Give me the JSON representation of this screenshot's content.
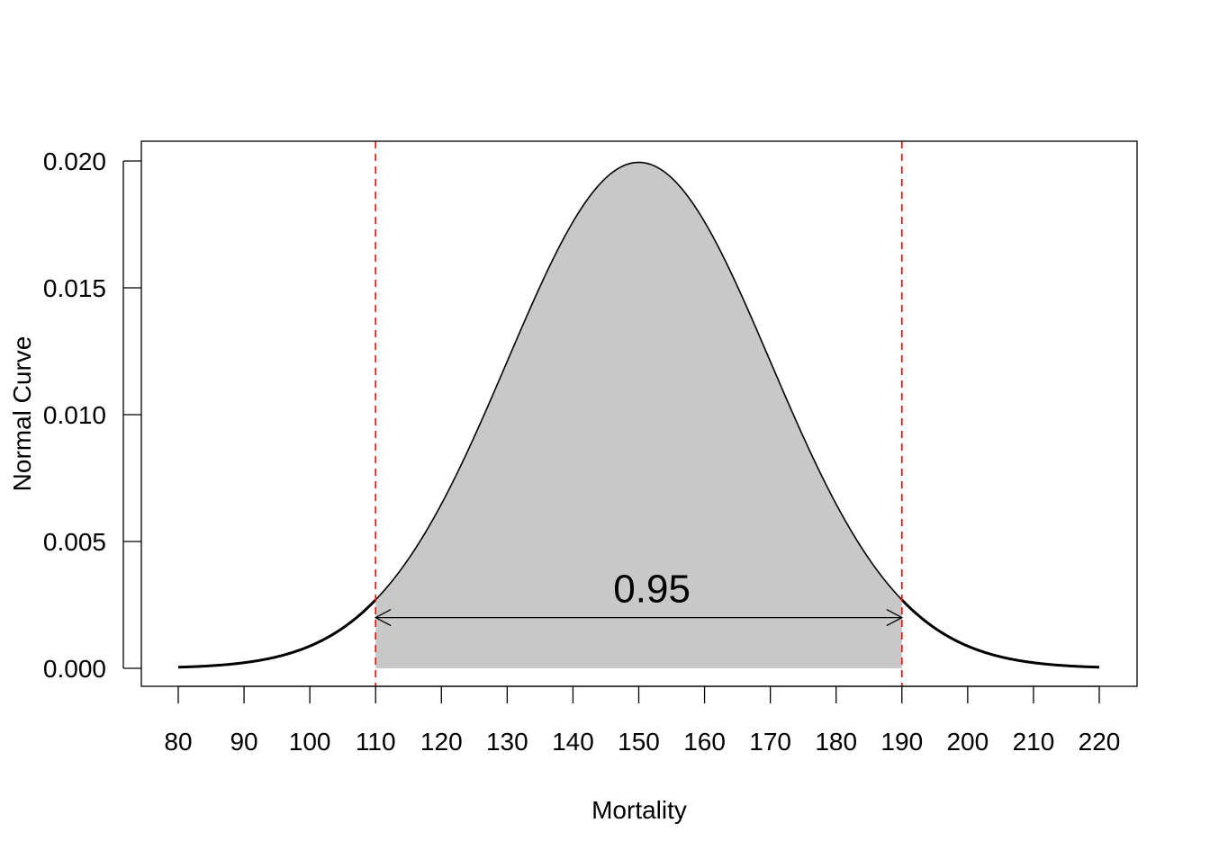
{
  "chart_data": {
    "type": "area",
    "title": "",
    "xlabel": "Mortality",
    "ylabel": "Normal Curve",
    "xlim": [
      80,
      220
    ],
    "ylim": [
      0,
      0.02
    ],
    "x_ticks": [
      "80",
      "90",
      "100",
      "110",
      "120",
      "130",
      "140",
      "150",
      "160",
      "170",
      "180",
      "190",
      "200",
      "210",
      "220"
    ],
    "y_ticks": [
      "0.000",
      "0.005",
      "0.010",
      "0.015",
      "0.020"
    ],
    "distribution": {
      "family": "normal",
      "mean": 150,
      "sd": 20
    },
    "shaded_region": {
      "from": 110,
      "to": 190,
      "fill": "#c8c8c8"
    },
    "reference_lines": [
      {
        "x": 110,
        "color": "#ff0000",
        "style": "dashed"
      },
      {
        "x": 190,
        "color": "#ff0000",
        "style": "dashed"
      }
    ],
    "annotation": {
      "text": "0.95",
      "x": 152,
      "y": 0.0031,
      "arrow_from": 110,
      "arrow_to": 190,
      "arrow_y": 0.002
    },
    "grid": false,
    "legend": "none"
  }
}
